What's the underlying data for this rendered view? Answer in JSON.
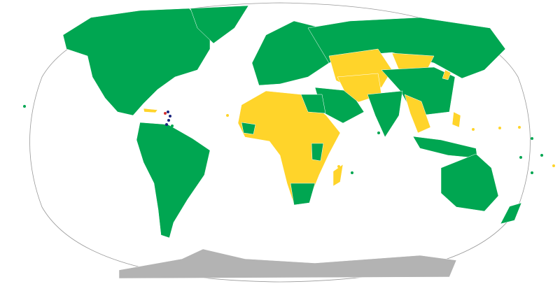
{
  "map": {
    "type": "world-choropleth",
    "projection": "winkel-tripel",
    "colors": {
      "ocean": "#ffffff",
      "frame": "#999999",
      "green": "#00a651",
      "yellow": "#ffd42a",
      "antarctica": "#b3b3b3",
      "borders": "#ffffff",
      "caribbean_dots": "#1a237e",
      "red_dot": "#d32f2f"
    }
  }
}
